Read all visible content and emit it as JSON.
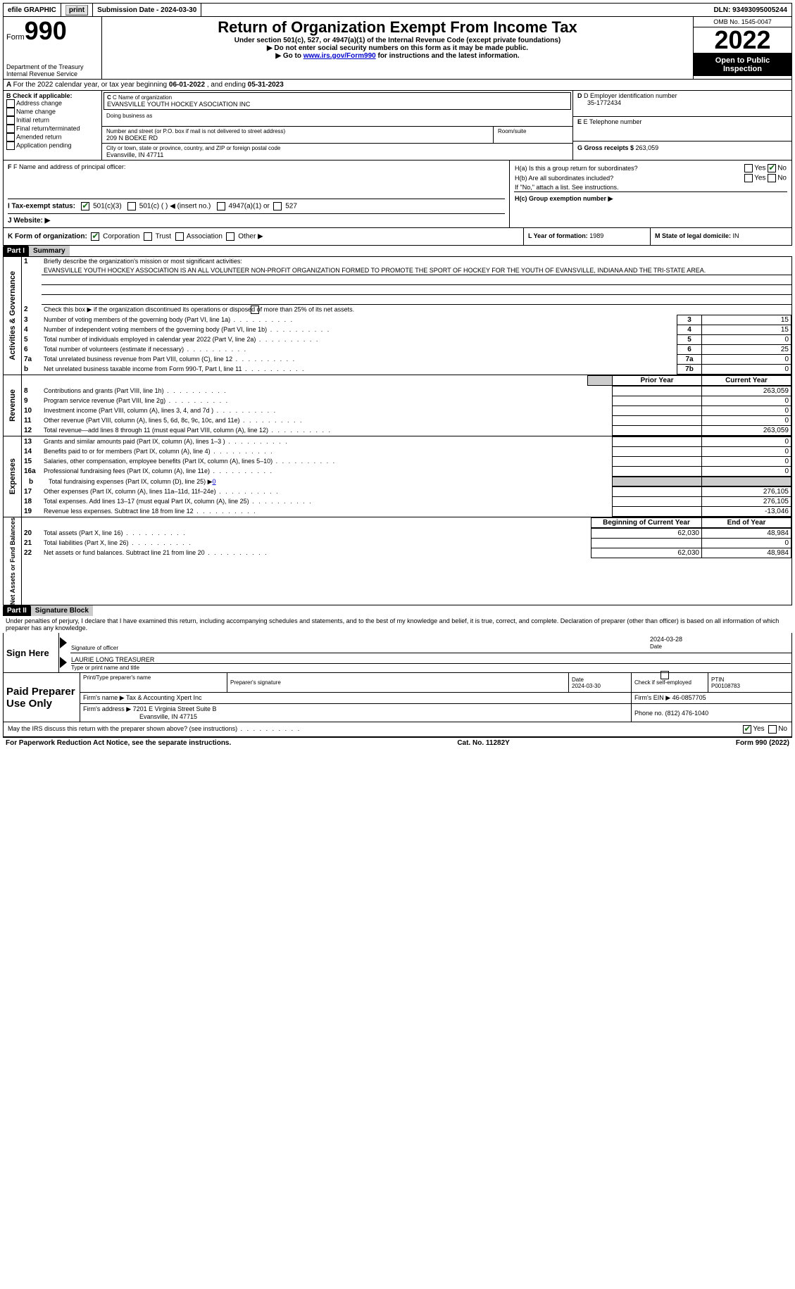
{
  "topbar": {
    "efile": "efile GRAPHIC",
    "print_btn": "print",
    "sub_date_label": "Submission Date - ",
    "sub_date": "2024-03-30",
    "dln_label": "DLN: ",
    "dln": "93493095005244"
  },
  "header": {
    "form_word": "Form",
    "form_num": "990",
    "dept1": "Department of the Treasury",
    "dept2": "Internal Revenue Service",
    "title": "Return of Organization Exempt From Income Tax",
    "sub1": "Under section 501(c), 527, or 4947(a)(1) of the Internal Revenue Code (except private foundations)",
    "sub2": "Do not enter social security numbers on this form as it may be made public.",
    "sub3_pre": "Go to ",
    "sub3_link": "www.irs.gov/Form990",
    "sub3_post": " for instructions and the latest information.",
    "omb": "OMB No. 1545-0047",
    "year": "2022",
    "inspect": "Open to Public Inspection"
  },
  "period": {
    "line_pre": "For the 2022 calendar year, or tax year beginning ",
    "begin": "06-01-2022",
    "mid": " , and ending ",
    "end": "05-31-2023"
  },
  "boxB": {
    "label": "B Check if applicable:",
    "items": [
      "Address change",
      "Name change",
      "Initial return",
      "Final return/terminated",
      "Amended return",
      "Application pending"
    ]
  },
  "boxC": {
    "name_label": "C Name of organization",
    "name": "EVANSVILLE YOUTH HOCKEY ASOCIATION INC",
    "dba_label": "Doing business as",
    "addr_label": "Number and street (or P.O. box if mail is not delivered to street address)",
    "room_label": "Room/suite",
    "addr": "209 N BOEKE RD",
    "city_label": "City or town, state or province, country, and ZIP or foreign postal code",
    "city": "Evansville, IN  47711"
  },
  "boxD": {
    "label": "D Employer identification number",
    "val": "35-1772434"
  },
  "boxE": {
    "label": "E Telephone number"
  },
  "boxG": {
    "label": "G Gross receipts $ ",
    "val": "263,059"
  },
  "boxF": {
    "label": "F Name and address of principal officer:"
  },
  "boxH": {
    "a": "H(a)  Is this a group return for subordinates?",
    "b": "H(b)  Are all subordinates included?",
    "b_note": "If \"No,\" attach a list. See instructions.",
    "c": "H(c)  Group exemption number ▶",
    "yes": "Yes",
    "no": "No"
  },
  "boxI": {
    "label": "I   Tax-exempt status:",
    "o1": "501(c)(3)",
    "o2": "501(c) (  ) ◀ (insert no.)",
    "o3": "4947(a)(1) or",
    "o4": "527"
  },
  "boxJ": {
    "label": "J   Website: ▶"
  },
  "boxK": {
    "label": "K Form of organization:",
    "o1": "Corporation",
    "o2": "Trust",
    "o3": "Association",
    "o4": "Other ▶"
  },
  "boxL": {
    "label": "L Year of formation: ",
    "val": "1989"
  },
  "boxM": {
    "label": "M State of legal domicile: ",
    "val": "IN"
  },
  "part1": {
    "hdr": "Part I",
    "title": "Summary",
    "l1_label": "Briefly describe the organization's mission or most significant activities:",
    "l1_text": "EVANSVILLE YOUTH HOCKEY ASSOCIATION IS AN ALL VOLUNTEER NON-PROFIT ORGANIZATION FORMED TO PROMOTE THE SPORT OF HOCKEY FOR THE YOUTH OF EVANSVILLE, INDIANA AND THE TRI-STATE AREA.",
    "l2": "Check this box ▶       if the organization discontinued its operations or disposed of more than 25% of its net assets.",
    "side_gov": "Activities & Governance",
    "side_rev": "Revenue",
    "side_exp": "Expenses",
    "side_net": "Net Assets or Fund Balances",
    "rows_gov": [
      {
        "n": "3",
        "t": "Number of voting members of the governing body (Part VI, line 1a)",
        "b": "3",
        "v": "15"
      },
      {
        "n": "4",
        "t": "Number of independent voting members of the governing body (Part VI, line 1b)",
        "b": "4",
        "v": "15"
      },
      {
        "n": "5",
        "t": "Total number of individuals employed in calendar year 2022 (Part V, line 2a)",
        "b": "5",
        "v": "0"
      },
      {
        "n": "6",
        "t": "Total number of volunteers (estimate if necessary)",
        "b": "6",
        "v": "25"
      },
      {
        "n": "7a",
        "t": "Total unrelated business revenue from Part VIII, column (C), line 12",
        "b": "7a",
        "v": "0"
      },
      {
        "n": "b",
        "t": "Net unrelated business taxable income from Form 990-T, Part I, line 11",
        "b": "7b",
        "v": "0"
      }
    ],
    "col_prior": "Prior Year",
    "col_curr": "Current Year",
    "rows_rev": [
      {
        "n": "8",
        "t": "Contributions and grants (Part VIII, line 1h)",
        "p": "",
        "c": "263,059"
      },
      {
        "n": "9",
        "t": "Program service revenue (Part VIII, line 2g)",
        "p": "",
        "c": "0"
      },
      {
        "n": "10",
        "t": "Investment income (Part VIII, column (A), lines 3, 4, and 7d )",
        "p": "",
        "c": "0"
      },
      {
        "n": "11",
        "t": "Other revenue (Part VIII, column (A), lines 5, 6d, 8c, 9c, 10c, and 11e)",
        "p": "",
        "c": "0"
      },
      {
        "n": "12",
        "t": "Total revenue—add lines 8 through 11 (must equal Part VIII, column (A), line 12)",
        "p": "",
        "c": "263,059"
      }
    ],
    "rows_exp": [
      {
        "n": "13",
        "t": "Grants and similar amounts paid (Part IX, column (A), lines 1–3 )",
        "p": "",
        "c": "0"
      },
      {
        "n": "14",
        "t": "Benefits paid to or for members (Part IX, column (A), line 4)",
        "p": "",
        "c": "0"
      },
      {
        "n": "15",
        "t": "Salaries, other compensation, employee benefits (Part IX, column (A), lines 5–10)",
        "p": "",
        "c": "0"
      },
      {
        "n": "16a",
        "t": "Professional fundraising fees (Part IX, column (A), line 11e)",
        "p": "",
        "c": "0"
      }
    ],
    "row_16b": {
      "n": "b",
      "t": "Total fundraising expenses (Part IX, column (D), line 25) ▶",
      "v": "0"
    },
    "rows_exp2": [
      {
        "n": "17",
        "t": "Other expenses (Part IX, column (A), lines 11a–11d, 11f–24e)",
        "p": "",
        "c": "276,105"
      },
      {
        "n": "18",
        "t": "Total expenses. Add lines 13–17 (must equal Part IX, column (A), line 25)",
        "p": "",
        "c": "276,105"
      },
      {
        "n": "19",
        "t": "Revenue less expenses. Subtract line 18 from line 12",
        "p": "",
        "c": "-13,046"
      }
    ],
    "col_boy": "Beginning of Current Year",
    "col_eoy": "End of Year",
    "rows_net": [
      {
        "n": "20",
        "t": "Total assets (Part X, line 16)",
        "p": "62,030",
        "c": "48,984"
      },
      {
        "n": "21",
        "t": "Total liabilities (Part X, line 26)",
        "p": "",
        "c": "0"
      },
      {
        "n": "22",
        "t": "Net assets or fund balances. Subtract line 21 from line 20",
        "p": "62,030",
        "c": "48,984"
      }
    ]
  },
  "part2": {
    "hdr": "Part II",
    "title": "Signature Block",
    "decl": "Under penalties of perjury, I declare that I have examined this return, including accompanying schedules and statements, and to the best of my knowledge and belief, it is true, correct, and complete. Declaration of preparer (other than officer) is based on all information of which preparer has any knowledge.",
    "sign_here": "Sign Here",
    "sig_officer": "Signature of officer",
    "sig_date": "2024-03-28",
    "date_label": "Date",
    "name_title": "LAURIE LONG TREASURER",
    "name_label": "Type or print name and title",
    "paid": "Paid Preparer Use Only",
    "prep_name_label": "Print/Type preparer's name",
    "prep_sig_label": "Preparer's signature",
    "prep_date_label": "Date",
    "prep_date": "2024-03-30",
    "check_se": "Check        if self-employed",
    "ptin_label": "PTIN",
    "ptin": "P00108783",
    "firm_name_label": "Firm's name    ▶ ",
    "firm_name": "Tax & Accounting Xpert Inc",
    "firm_ein_label": "Firm's EIN ▶ ",
    "firm_ein": "46-0857705",
    "firm_addr_label": "Firm's address ▶ ",
    "firm_addr1": "7201 E Virginia Street Suite B",
    "firm_addr2": "Evansville, IN  47715",
    "phone_label": "Phone no. ",
    "phone": "(812) 476-1040",
    "discuss": "May the IRS discuss this return with the preparer shown above? (see instructions)",
    "yes": "Yes",
    "no": "No"
  },
  "footer": {
    "l": "For Paperwork Reduction Act Notice, see the separate instructions.",
    "c": "Cat. No. 11282Y",
    "r": "Form 990 (2022)"
  }
}
